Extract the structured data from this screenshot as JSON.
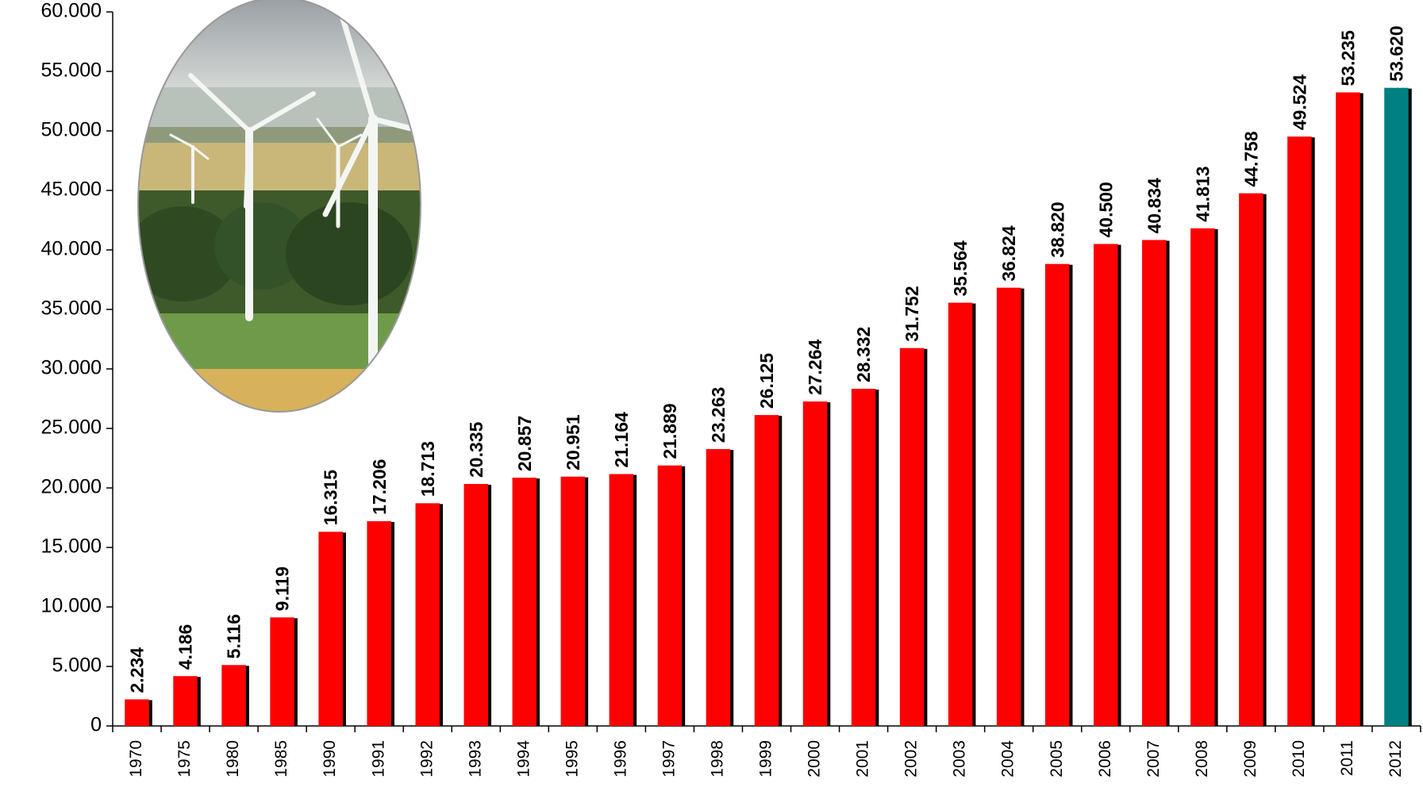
{
  "chart_data": {
    "type": "bar",
    "categories": [
      "1970",
      "1975",
      "1980",
      "1985",
      "1990",
      "1991",
      "1992",
      "1993",
      "1994",
      "1995",
      "1996",
      "1997",
      "1998",
      "1999",
      "2000",
      "2001",
      "2002",
      "2003",
      "2004",
      "2005",
      "2006",
      "2007",
      "2008",
      "2009",
      "2010",
      "2011",
      "2012"
    ],
    "values": [
      2234,
      4186,
      5116,
      9119,
      16315,
      17206,
      18713,
      20335,
      20857,
      20951,
      21164,
      21889,
      23263,
      26125,
      27264,
      28332,
      31752,
      35564,
      36824,
      38820,
      40500,
      40834,
      41813,
      44758,
      49524,
      53235,
      53620
    ],
    "value_labels": [
      "2.234",
      "4.186",
      "5.116",
      "9.119",
      "16.315",
      "17.206",
      "18.713",
      "20.335",
      "20.857",
      "20.951",
      "21.164",
      "21.889",
      "23.263",
      "26.125",
      "27.264",
      "28.332",
      "31.752",
      "35.564",
      "36.824",
      "38.820",
      "40.500",
      "40.834",
      "41.813",
      "44.758",
      "49.524",
      "53.235",
      "53.620"
    ],
    "colors": [
      "#ff0000",
      "#ff0000",
      "#ff0000",
      "#ff0000",
      "#ff0000",
      "#ff0000",
      "#ff0000",
      "#ff0000",
      "#ff0000",
      "#ff0000",
      "#ff0000",
      "#ff0000",
      "#ff0000",
      "#ff0000",
      "#ff0000",
      "#ff0000",
      "#ff0000",
      "#ff0000",
      "#ff0000",
      "#ff0000",
      "#ff0000",
      "#ff0000",
      "#ff0000",
      "#ff0000",
      "#ff0000",
      "#ff0000",
      "#008080"
    ],
    "ylim": [
      0,
      60000
    ],
    "yticks": [
      0,
      {
        "value": 5000,
        "label": "5.000"
      },
      {
        "value": 10000,
        "label": "10.000"
      },
      {
        "value": 15000,
        "label": "15.000"
      },
      {
        "value": 20000,
        "label": "20.000"
      },
      {
        "value": 25000,
        "label": "25.000"
      },
      {
        "value": 30000,
        "label": "30.000"
      },
      {
        "value": 35000,
        "label": "35.000"
      },
      {
        "value": 40000,
        "label": "40.000"
      },
      {
        "value": 45000,
        "label": "45.000"
      },
      {
        "value": 50000,
        "label": "50.000"
      },
      {
        "value": 55000,
        "label": "55.000"
      },
      {
        "value": 60000,
        "label": "60.000"
      }
    ],
    "grid": false
  }
}
